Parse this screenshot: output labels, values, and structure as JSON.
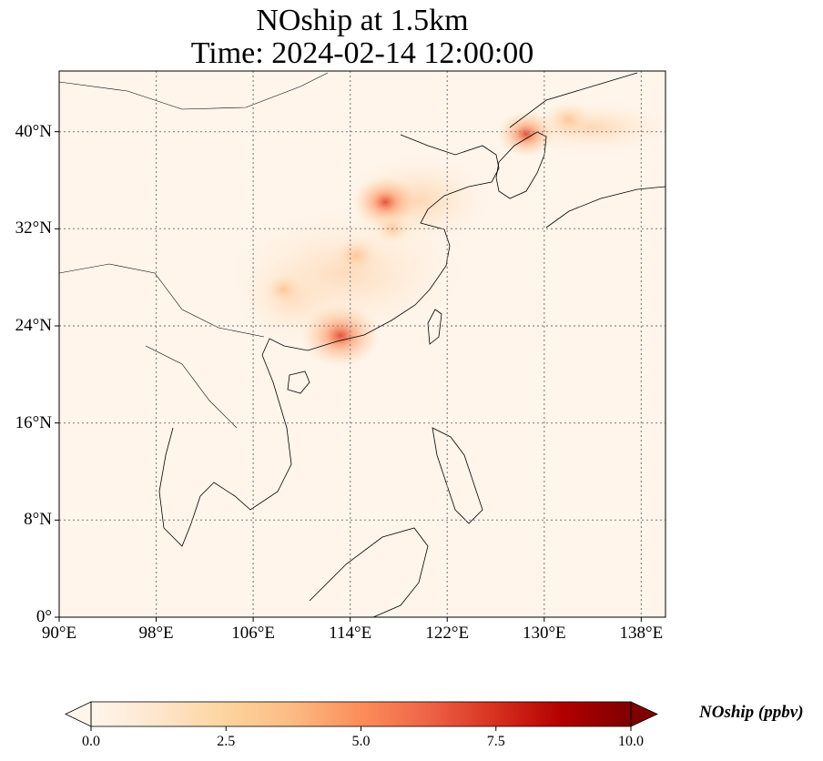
{
  "title_line1": "NOship at 1.5km",
  "title_line2": "Time: 2024-02-14 12:00:00",
  "map": {
    "lon_range": [
      90,
      140
    ],
    "lat_range": [
      0,
      45
    ],
    "gridlines": true,
    "x_ticks": [
      {
        "value": 90,
        "label": "90°E"
      },
      {
        "value": 98,
        "label": "98°E"
      },
      {
        "value": 106,
        "label": "106°E"
      },
      {
        "value": 114,
        "label": "114°E"
      },
      {
        "value": 122,
        "label": "122°E"
      },
      {
        "value": 130,
        "label": "130°E"
      },
      {
        "value": 138,
        "label": "138°E"
      }
    ],
    "y_ticks": [
      {
        "value": 0,
        "label": "0°"
      },
      {
        "value": 8,
        "label": "8°N"
      },
      {
        "value": 16,
        "label": "16°N"
      },
      {
        "value": 24,
        "label": "24°N"
      },
      {
        "value": 32,
        "label": "32°N"
      },
      {
        "value": 40,
        "label": "40°N"
      }
    ],
    "hotspots": [
      {
        "lon": 113.2,
        "lat": 23.2,
        "value": 7.5
      },
      {
        "lon": 116.9,
        "lat": 34.2,
        "value": 5.5
      },
      {
        "lon": 128.5,
        "lat": 39.8,
        "value": 4.5
      },
      {
        "lon": 132.0,
        "lat": 41.0,
        "value": 3.0
      },
      {
        "lon": 114.5,
        "lat": 29.8,
        "value": 3.0
      },
      {
        "lon": 108.5,
        "lat": 27.0,
        "value": 2.0
      },
      {
        "lon": 117.5,
        "lat": 32.0,
        "value": 2.0
      }
    ]
  },
  "colorbar": {
    "label": "NOship (ppbv)",
    "min": 0.0,
    "max": 10.0,
    "extend": "both",
    "colormap": [
      "#fff5eb",
      "#fee6ce",
      "#fdd0a2",
      "#fdae6b",
      "#fd8d3c",
      "#f16913",
      "#d94801",
      "#a63603",
      "#7f2704"
    ],
    "ticks": [
      "0.0",
      "2.5",
      "5.0",
      "7.5",
      "10.0"
    ]
  }
}
